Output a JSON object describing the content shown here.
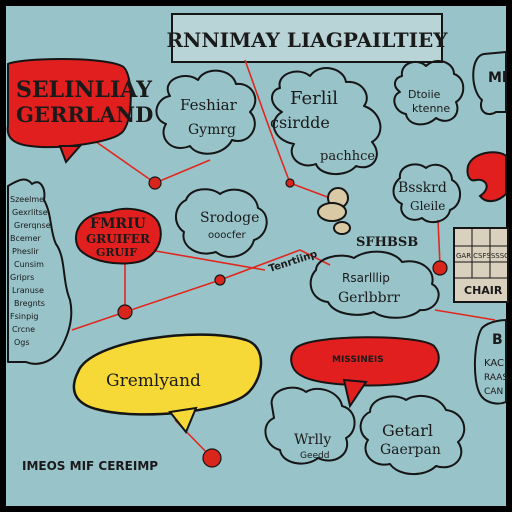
{
  "header": {
    "title": "RNNIMAY LIAGPAILTIEY"
  },
  "bubbles": {
    "top_left_red": {
      "line1": "SELINLIAY",
      "line2": "GERRLAND"
    },
    "fashion": {
      "line1": "Feshiar",
      "line2": "Gymrg"
    },
    "center_top": {
      "line1": "Ferlil",
      "line2": "csirdde",
      "line3": "pachhce"
    },
    "top_right_small": {
      "line1": "Dtoiie",
      "line2": "ktenne"
    },
    "far_right_white": {
      "line1": "Ml"
    },
    "right_beige": {
      "line1": "Bsskrd",
      "line2": "Gleile"
    },
    "left_red_circle": {
      "line1": "FMRIU",
      "line2": "GRUIFER",
      "line3": "GRUIF"
    },
    "center_beige": {
      "line1": "Srodoge",
      "line2": "ooocfer"
    },
    "cloud_mid": {
      "line1": "Rsarlllip",
      "line2": "Gerlbbrr"
    },
    "mid_link_text": {
      "line1": "Tenrtiinp"
    },
    "label_stb": {
      "text": "SFHBSB"
    },
    "yellow_oval": {
      "text": "Gremlyand"
    },
    "red_oval_right": {
      "text": "MISSINEIS"
    },
    "bottom_left_beige": {
      "line1": "Wrlly",
      "line2": "Geedd"
    },
    "bottom_right": {
      "line1": "Getarl",
      "line2": "Gaerpan"
    },
    "right_edge": {
      "line1": "B",
      "line2": "KAC",
      "line3": "RAAS",
      "line4": "CAN"
    },
    "table_text": {
      "line1": "GARICSFSSSSC",
      "line2": "CHAIR"
    }
  },
  "map_text": {
    "lines": [
      "Szeelme",
      "Gexrlitse",
      "Grerqnse",
      "Bcemer",
      "Pheslir",
      "Cunsim",
      "Griprs",
      "Lranuse",
      "Bregnts",
      "Fsinpig",
      "Crcne",
      "Ogs"
    ]
  },
  "footer": {
    "caption": "IMEOS MIF CEREIMP"
  }
}
